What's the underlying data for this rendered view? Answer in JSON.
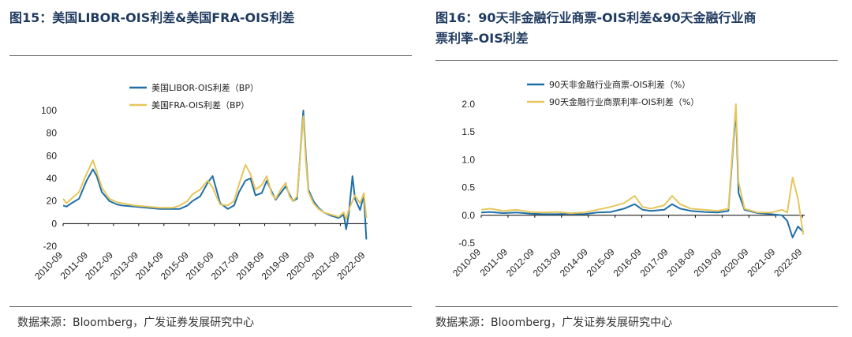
{
  "left_panel": {
    "title": "图15：美国LIBOR-OIS利差&美国FRA-OIS利差",
    "source": "数据来源：Bloomberg，广发证券发展研究中心"
  },
  "right_panel": {
    "title_line1": "图16：90天非金融行业商票-OIS利差&90天金融行业商",
    "title_line2": "票利率-OIS利差",
    "source": "数据来源：Bloomberg，广发证券发展研究中心"
  },
  "colors": {
    "blue": "#1f6fa8",
    "gold": "#e6c65c",
    "title": "#1f3a5f"
  },
  "chart_data": [
    {
      "type": "line",
      "x": [
        "2010-09",
        "2011-09",
        "2012-09",
        "2013-09",
        "2014-09",
        "2015-09",
        "2016-09",
        "2017-09",
        "2018-09",
        "2019-09",
        "2020-09",
        "2021-09",
        "2022-09"
      ],
      "ylim": [
        -20,
        100
      ],
      "yticks": [
        -20,
        0,
        20,
        40,
        60,
        80,
        100
      ],
      "ytick_labels": [
        "-20",
        "0",
        "20",
        "40",
        "60",
        "80",
        "100"
      ],
      "legend_position": "top-center",
      "series": [
        {
          "name": "美国LIBOR-OIS利差（BP）",
          "color": "#1f6fa8",
          "points": [
            [
              2010.67,
              16
            ],
            [
              2010.8,
              15
            ],
            [
              2011.0,
              18
            ],
            [
              2011.3,
              22
            ],
            [
              2011.6,
              38
            ],
            [
              2011.85,
              48
            ],
            [
              2012.0,
              42
            ],
            [
              2012.2,
              28
            ],
            [
              2012.5,
              20
            ],
            [
              2012.8,
              17
            ],
            [
              2013.0,
              16
            ],
            [
              2013.5,
              15
            ],
            [
              2014.0,
              14
            ],
            [
              2014.5,
              13
            ],
            [
              2015.0,
              13
            ],
            [
              2015.3,
              13
            ],
            [
              2015.6,
              16
            ],
            [
              2015.8,
              20
            ],
            [
              2016.1,
              24
            ],
            [
              2016.4,
              36
            ],
            [
              2016.6,
              42
            ],
            [
              2016.75,
              30
            ],
            [
              2016.9,
              18
            ],
            [
              2017.2,
              13
            ],
            [
              2017.45,
              16
            ],
            [
              2017.65,
              28
            ],
            [
              2017.9,
              38
            ],
            [
              2018.1,
              40
            ],
            [
              2018.3,
              25
            ],
            [
              2018.55,
              27
            ],
            [
              2018.75,
              38
            ],
            [
              2018.95,
              28
            ],
            [
              2019.1,
              21
            ],
            [
              2019.3,
              27
            ],
            [
              2019.5,
              33
            ],
            [
              2019.65,
              26
            ],
            [
              2019.78,
              20
            ],
            [
              2019.95,
              22
            ],
            [
              2020.2,
              100
            ],
            [
              2020.3,
              60
            ],
            [
              2020.4,
              30
            ],
            [
              2020.6,
              20
            ],
            [
              2020.8,
              14
            ],
            [
              2021.0,
              10
            ],
            [
              2021.3,
              7
            ],
            [
              2021.6,
              5
            ],
            [
              2021.8,
              8
            ],
            [
              2021.9,
              -5
            ],
            [
              2022.0,
              8
            ],
            [
              2022.15,
              42
            ],
            [
              2022.25,
              22
            ],
            [
              2022.45,
              12
            ],
            [
              2022.6,
              25
            ],
            [
              2022.7,
              -14
            ]
          ]
        },
        {
          "name": "美国FRA-OIS利差（BP）",
          "color": "#e6c65c",
          "points": [
            [
              2010.67,
              22
            ],
            [
              2010.8,
              18
            ],
            [
              2011.0,
              22
            ],
            [
              2011.3,
              28
            ],
            [
              2011.6,
              44
            ],
            [
              2011.85,
              56
            ],
            [
              2012.0,
              46
            ],
            [
              2012.2,
              32
            ],
            [
              2012.5,
              22
            ],
            [
              2012.8,
              19
            ],
            [
              2013.0,
              18
            ],
            [
              2013.5,
              16
            ],
            [
              2014.0,
              15
            ],
            [
              2014.5,
              14
            ],
            [
              2015.0,
              14
            ],
            [
              2015.3,
              16
            ],
            [
              2015.6,
              20
            ],
            [
              2015.8,
              26
            ],
            [
              2016.1,
              30
            ],
            [
              2016.4,
              38
            ],
            [
              2016.6,
              32
            ],
            [
              2016.75,
              24
            ],
            [
              2016.9,
              17
            ],
            [
              2017.2,
              16
            ],
            [
              2017.45,
              20
            ],
            [
              2017.65,
              35
            ],
            [
              2017.9,
              52
            ],
            [
              2018.1,
              44
            ],
            [
              2018.3,
              30
            ],
            [
              2018.55,
              34
            ],
            [
              2018.75,
              42
            ],
            [
              2018.95,
              26
            ],
            [
              2019.1,
              22
            ],
            [
              2019.3,
              30
            ],
            [
              2019.5,
              36
            ],
            [
              2019.65,
              24
            ],
            [
              2019.78,
              20
            ],
            [
              2019.95,
              24
            ],
            [
              2020.2,
              95
            ],
            [
              2020.3,
              55
            ],
            [
              2020.4,
              28
            ],
            [
              2020.6,
              18
            ],
            [
              2020.8,
              13
            ],
            [
              2021.0,
              10
            ],
            [
              2021.3,
              8
            ],
            [
              2021.6,
              6
            ],
            [
              2021.8,
              10
            ],
            [
              2021.9,
              4
            ],
            [
              2022.0,
              12
            ],
            [
              2022.15,
              20
            ],
            [
              2022.25,
              25
            ],
            [
              2022.45,
              18
            ],
            [
              2022.6,
              27
            ],
            [
              2022.7,
              5
            ]
          ]
        }
      ]
    },
    {
      "type": "line",
      "x": [
        "2010-09",
        "2011-09",
        "2012-09",
        "2013-09",
        "2014-09",
        "2015-09",
        "2016-09",
        "2017-09",
        "2018-09",
        "2019-09",
        "2020-09",
        "2021-09",
        "2022-09"
      ],
      "ylim": [
        -0.5,
        2.0
      ],
      "yticks": [
        -0.5,
        0.0,
        0.5,
        1.0,
        1.5,
        2.0
      ],
      "ytick_labels": [
        "-0.5",
        "0.0",
        "0.5",
        "1.0",
        "1.5",
        "2.0"
      ],
      "legend_position": "top-center",
      "series": [
        {
          "name": "90天非金融行业商票-OIS利差（%）",
          "color": "#1f6fa8",
          "points": [
            [
              2010.67,
              0.05
            ],
            [
              2011.0,
              0.06
            ],
            [
              2011.5,
              0.04
            ],
            [
              2012.0,
              0.05
            ],
            [
              2012.5,
              0.03
            ],
            [
              2013.0,
              0.02
            ],
            [
              2013.5,
              0.02
            ],
            [
              2014.0,
              0.03
            ],
            [
              2014.5,
              0.02
            ],
            [
              2015.0,
              0.05
            ],
            [
              2015.5,
              0.06
            ],
            [
              2016.0,
              0.12
            ],
            [
              2016.4,
              0.2
            ],
            [
              2016.7,
              0.1
            ],
            [
              2017.0,
              0.08
            ],
            [
              2017.5,
              0.1
            ],
            [
              2017.8,
              0.2
            ],
            [
              2018.1,
              0.12
            ],
            [
              2018.5,
              0.08
            ],
            [
              2019.0,
              0.06
            ],
            [
              2019.5,
              0.05
            ],
            [
              2019.9,
              0.08
            ],
            [
              2020.18,
              1.9
            ],
            [
              2020.28,
              0.4
            ],
            [
              2020.5,
              0.1
            ],
            [
              2021.0,
              0.04
            ],
            [
              2021.5,
              0.02
            ],
            [
              2021.9,
              0.0
            ],
            [
              2022.1,
              -0.1
            ],
            [
              2022.3,
              -0.4
            ],
            [
              2022.5,
              -0.2
            ],
            [
              2022.7,
              -0.3
            ]
          ]
        },
        {
          "name": "90天金融行业商票利率-OIS利差（%）",
          "color": "#e6c65c",
          "points": [
            [
              2010.67,
              0.1
            ],
            [
              2011.0,
              0.12
            ],
            [
              2011.5,
              0.08
            ],
            [
              2012.0,
              0.1
            ],
            [
              2012.5,
              0.06
            ],
            [
              2013.0,
              0.05
            ],
            [
              2013.5,
              0.06
            ],
            [
              2014.0,
              0.04
            ],
            [
              2014.5,
              0.05
            ],
            [
              2015.0,
              0.1
            ],
            [
              2015.5,
              0.15
            ],
            [
              2016.0,
              0.22
            ],
            [
              2016.4,
              0.35
            ],
            [
              2016.7,
              0.15
            ],
            [
              2017.0,
              0.12
            ],
            [
              2017.5,
              0.18
            ],
            [
              2017.8,
              0.35
            ],
            [
              2018.1,
              0.2
            ],
            [
              2018.5,
              0.12
            ],
            [
              2019.0,
              0.1
            ],
            [
              2019.5,
              0.08
            ],
            [
              2019.9,
              0.12
            ],
            [
              2020.18,
              2.0
            ],
            [
              2020.28,
              0.6
            ],
            [
              2020.5,
              0.12
            ],
            [
              2021.0,
              0.05
            ],
            [
              2021.5,
              0.05
            ],
            [
              2021.9,
              0.1
            ],
            [
              2022.1,
              0.05
            ],
            [
              2022.3,
              0.68
            ],
            [
              2022.5,
              0.3
            ],
            [
              2022.7,
              -0.35
            ]
          ]
        }
      ]
    }
  ]
}
